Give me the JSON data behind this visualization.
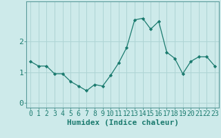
{
  "x": [
    0,
    1,
    2,
    3,
    4,
    5,
    6,
    7,
    8,
    9,
    10,
    11,
    12,
    13,
    14,
    15,
    16,
    17,
    18,
    19,
    20,
    21,
    22,
    23
  ],
  "y": [
    1.35,
    1.2,
    1.2,
    0.95,
    0.95,
    0.7,
    0.55,
    0.4,
    0.6,
    0.55,
    0.9,
    1.3,
    1.8,
    2.7,
    2.75,
    2.4,
    2.65,
    1.65,
    1.45,
    0.95,
    1.35,
    1.5,
    1.5,
    1.2
  ],
  "xlabel": "Humidex (Indice chaleur)",
  "ylabel": "",
  "xlim": [
    -0.5,
    23.5
  ],
  "ylim": [
    -0.15,
    3.3
  ],
  "yticks": [
    0,
    1,
    2
  ],
  "xticks": [
    0,
    1,
    2,
    3,
    4,
    5,
    6,
    7,
    8,
    9,
    10,
    11,
    12,
    13,
    14,
    15,
    16,
    17,
    18,
    19,
    20,
    21,
    22,
    23
  ],
  "line_color": "#1a7a6e",
  "marker_color": "#1a7a6e",
  "bg_color": "#cdeaea",
  "grid_color": "#aed4d4",
  "axis_color": "#5a9a9a",
  "tick_color": "#1a7a6e",
  "xlabel_fontsize": 8,
  "label_fontsize": 7.5
}
